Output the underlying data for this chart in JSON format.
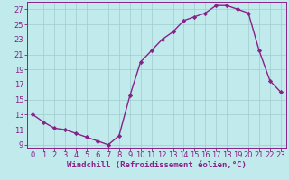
{
  "x": [
    0,
    1,
    2,
    3,
    4,
    5,
    6,
    7,
    8,
    9,
    10,
    11,
    12,
    13,
    14,
    15,
    16,
    17,
    18,
    19,
    20,
    21,
    22,
    23
  ],
  "y": [
    13,
    12,
    11.2,
    11,
    10.5,
    10,
    9.5,
    9,
    10.2,
    15.5,
    20,
    21.5,
    23,
    24,
    25.5,
    26,
    26.5,
    27.5,
    27.5,
    27,
    26.5,
    21.5,
    17.5,
    16
  ],
  "line_color": "#882288",
  "marker": "D",
  "marker_size": 2.2,
  "bg_color": "#c0eaec",
  "grid_color": "#a0ccce",
  "xlabel": "Windchill (Refroidissement éolien,°C)",
  "ylabel": "",
  "xlim": [
    -0.5,
    23.5
  ],
  "ylim": [
    8.5,
    28
  ],
  "yticks": [
    9,
    11,
    13,
    15,
    17,
    19,
    21,
    23,
    25,
    27
  ],
  "xticks": [
    0,
    1,
    2,
    3,
    4,
    5,
    6,
    7,
    8,
    9,
    10,
    11,
    12,
    13,
    14,
    15,
    16,
    17,
    18,
    19,
    20,
    21,
    22,
    23
  ],
  "title_color": "#882288",
  "font_family": "monospace",
  "label_fontsize": 6.5,
  "tick_fontsize": 6.0,
  "linewidth": 1.0
}
